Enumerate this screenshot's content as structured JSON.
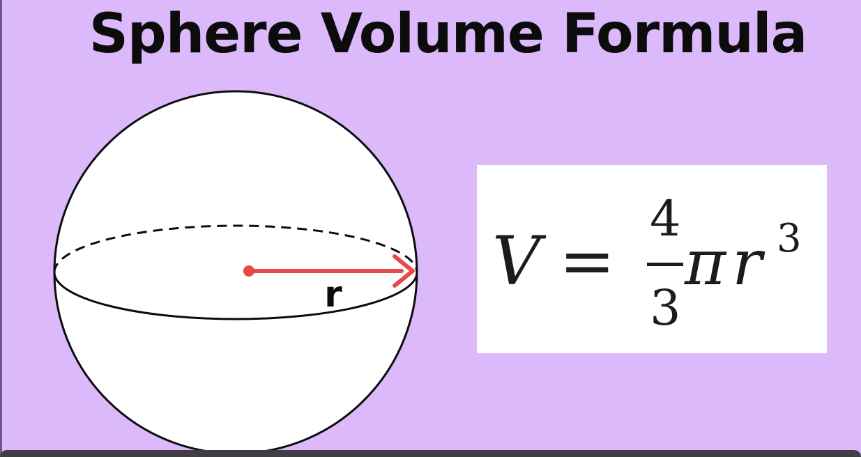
{
  "title": "Sphere Volume Formula",
  "diagram": {
    "radius_label": "r",
    "colors": {
      "background": "#dbb9fb",
      "sphere_fill": "#ffffff",
      "outline": "#0c0c0c",
      "radius_arrow": "#e84848"
    }
  },
  "formula": {
    "lhs": "V",
    "equals": "=",
    "numerator": "4",
    "denominator": "3",
    "pi": "π",
    "variable": "r",
    "exponent": "3"
  }
}
